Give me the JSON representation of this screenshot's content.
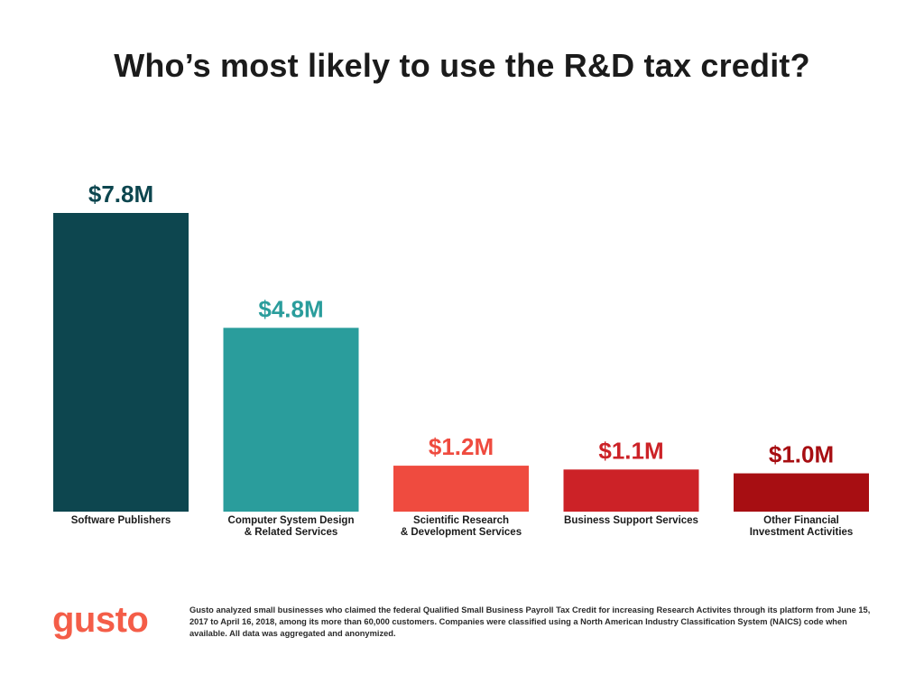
{
  "chart_data": {
    "type": "bar",
    "title": "Who’s most likely to use the R&D tax credit?",
    "categories": [
      "Software Publishers",
      "Computer System Design\n& Related Services",
      "Scientific Research\n& Development Services",
      "Business Support Services",
      "Other Financial\nInvestment Activities"
    ],
    "values": [
      7.8,
      4.8,
      1.2,
      1.1,
      1.0
    ],
    "value_labels": [
      "$7.8M",
      "$4.8M",
      "$1.2M",
      "$1.1M",
      "$1.0M"
    ],
    "colors": [
      "#0d464f",
      "#2a9d9c",
      "#ef4b3f",
      "#cc2227",
      "#a70e12"
    ],
    "unit": "$M",
    "ylim": [
      0,
      7.8
    ],
    "grid": false,
    "legend": "none"
  },
  "brand": {
    "logo_text": "gusto",
    "logo_color": "#f45d48"
  },
  "footnote": "Gusto analyzed small businesses who claimed the federal Qualified Small Business Payroll Tax Credit for increasing Research Activites through its platform from June 15, 2017 to April 16, 2018, among its more than 60,000 customers. Companies were classified using a North American Industry Classification System (NAICS) code when available. All data was aggregated and anonymized."
}
